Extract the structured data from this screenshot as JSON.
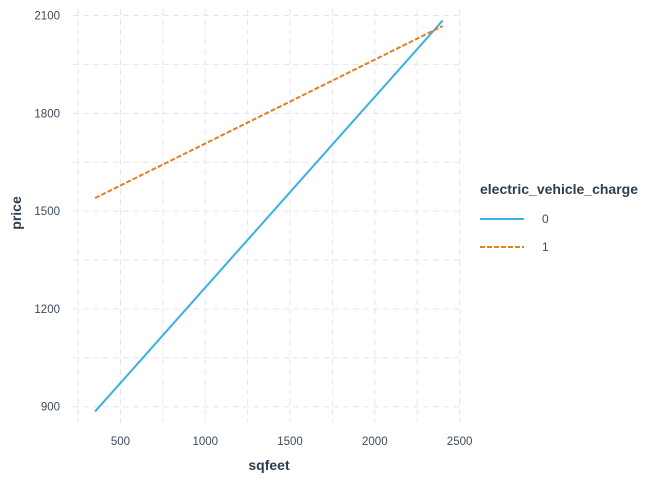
{
  "chart_data": {
    "type": "line",
    "xlabel": "sqfeet",
    "ylabel": "price",
    "xlim": [
      220,
      2520
    ],
    "ylim": [
      850,
      2120
    ],
    "xticks": [
      500,
      1000,
      1500,
      2000,
      2500
    ],
    "yticks": [
      900,
      1200,
      1500,
      1800,
      2100
    ],
    "grid": true,
    "legend": {
      "title": "electric_vehicle_charge",
      "placement": "right"
    },
    "series": [
      {
        "name": "0",
        "color": "#3daee9",
        "dash": "solid",
        "x": [
          350,
          2400
        ],
        "y": [
          885,
          2085
        ]
      },
      {
        "name": "1",
        "color": "#e67e22",
        "dash": "dashed",
        "x": [
          350,
          2400
        ],
        "y": [
          1540,
          2068
        ]
      }
    ]
  }
}
